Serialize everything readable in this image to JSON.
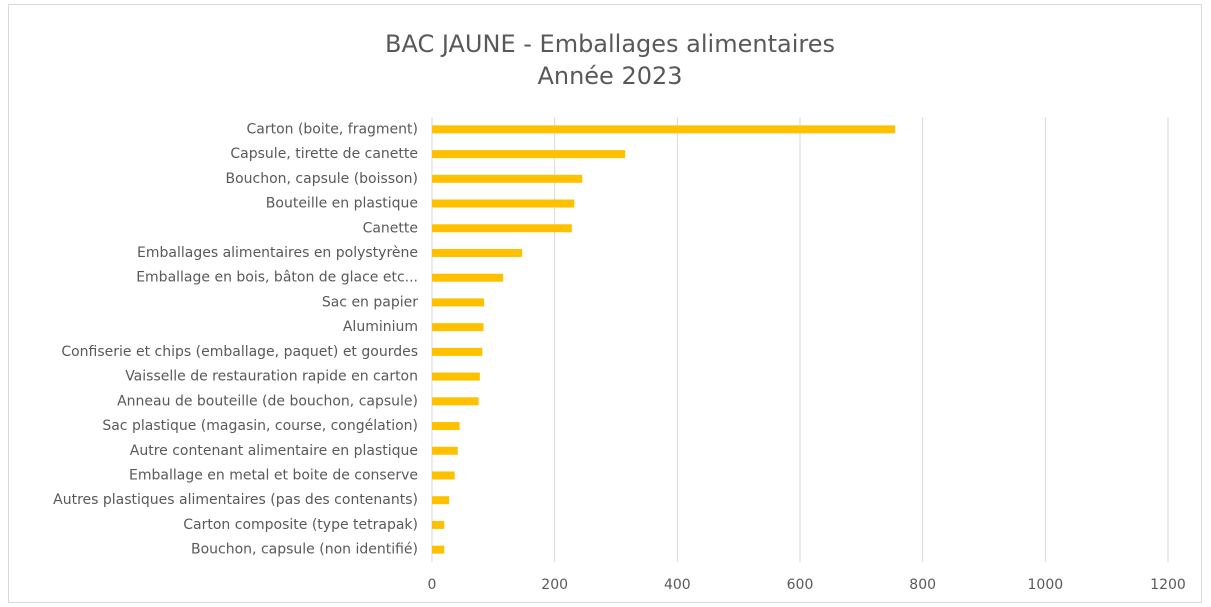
{
  "chart_data": {
    "type": "bar",
    "orientation": "horizontal",
    "title": "BAC JAUNE - Emballages alimentaires",
    "subtitle": "Année 2023",
    "categories": [
      "Carton (boite, fragment)",
      "Capsule, tirette de canette",
      "Bouchon, capsule (boisson)",
      "Bouteille en plastique",
      "Canette",
      "Emballages alimentaires en polystyrène",
      "Emballage en bois, bâton de glace etc...",
      "Sac en papier",
      "Aluminium",
      "Confiserie et chips (emballage, paquet) et gourdes",
      "Vaisselle de restauration rapide en carton",
      "Anneau de bouteille (de bouchon, capsule)",
      "Sac plastique (magasin, course, congélation)",
      "Autre contenant alimentaire en plastique",
      "Emballage en metal et boite de conserve",
      "Autres plastiques alimentaires (pas des contenants)",
      "Carton composite (type tetrapak)",
      "Bouchon, capsule (non identifié)"
    ],
    "values": [
      755,
      315,
      245,
      232,
      228,
      147,
      116,
      85,
      84,
      82,
      78,
      76,
      45,
      42,
      37,
      28,
      20,
      20
    ],
    "color": "#ffc000",
    "xlim": [
      0,
      1200
    ],
    "xticks": [
      0,
      200,
      400,
      600,
      800,
      1000,
      1200
    ],
    "grid": true
  }
}
